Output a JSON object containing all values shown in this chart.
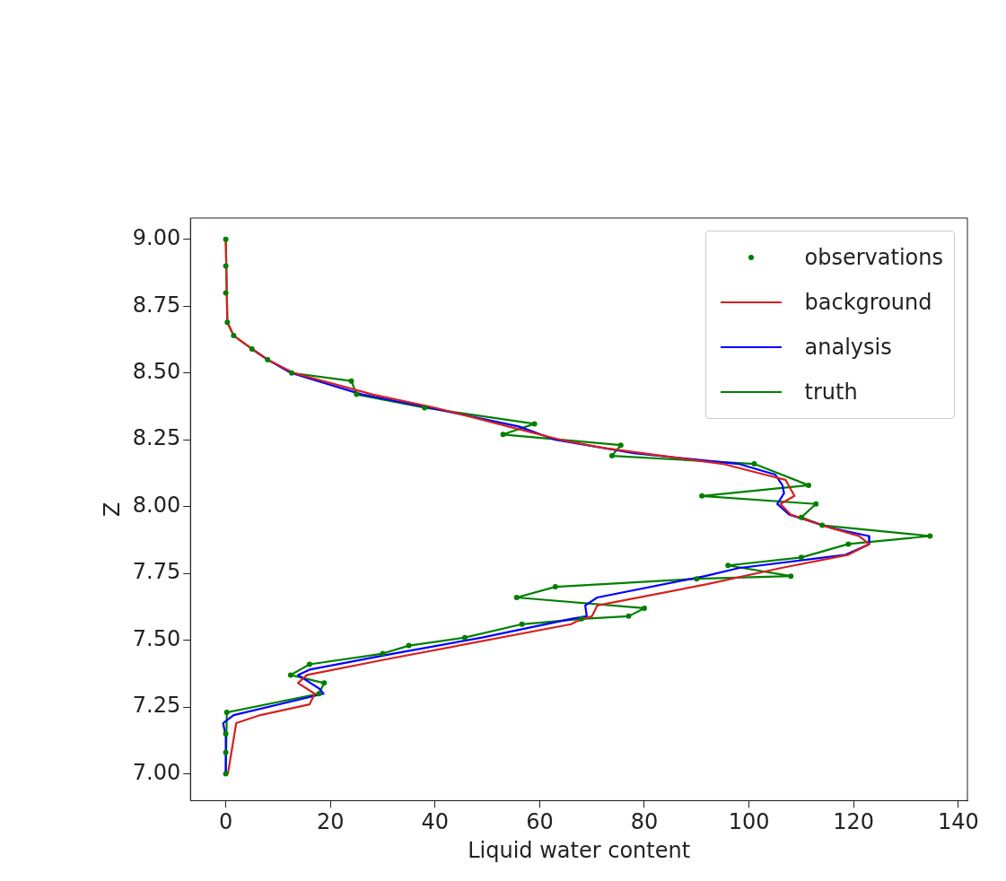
{
  "chart_data": {
    "type": "line",
    "xlabel": "Liquid water content",
    "ylabel": "Z",
    "xlim": [
      -6.75,
      141.75
    ],
    "xticks": [
      0,
      20,
      40,
      60,
      80,
      100,
      120,
      140
    ],
    "ylim": [
      6.9,
      9.08
    ],
    "yticks": [
      {
        "value": 7.0,
        "label": "7.00"
      },
      {
        "value": 7.25,
        "label": "7.25"
      },
      {
        "value": 7.5,
        "label": "7.50"
      },
      {
        "value": 7.75,
        "label": "7.75"
      },
      {
        "value": 8.0,
        "label": "8.00"
      },
      {
        "value": 8.25,
        "label": "8.25"
      },
      {
        "value": 8.5,
        "label": "8.50"
      },
      {
        "value": 8.75,
        "label": "8.75"
      },
      {
        "value": 9.0,
        "label": "9.00"
      }
    ],
    "grid": false,
    "legend": "top right",
    "series": [
      {
        "name": "observations",
        "type": "scatter",
        "marker": "circle",
        "color": "#008000",
        "x": [
          0,
          0,
          0,
          0.3,
          1.5,
          5,
          8,
          12.6,
          24,
          25,
          38,
          59,
          53,
          75.5,
          73.8,
          101,
          111.4,
          91,
          112.8,
          110,
          114,
          134.6,
          119,
          110,
          96,
          108,
          90,
          63,
          55.6,
          80,
          77,
          68,
          56.6,
          45.7,
          35,
          30,
          16,
          12.4,
          18.8,
          17.8,
          0.2,
          0,
          0,
          0
        ],
        "values": [
          9.0,
          8.9,
          8.8,
          8.69,
          8.64,
          8.59,
          8.55,
          8.5,
          8.47,
          8.42,
          8.37,
          8.31,
          8.27,
          8.23,
          8.19,
          8.16,
          8.08,
          8.04,
          8.01,
          7.96,
          7.93,
          7.89,
          7.86,
          7.81,
          7.78,
          7.74,
          7.73,
          7.7,
          7.66,
          7.62,
          7.59,
          7.58,
          7.56,
          7.51,
          7.48,
          7.45,
          7.41,
          7.37,
          7.34,
          7.3,
          7.23,
          7.15,
          7.08,
          7.0
        ]
      },
      {
        "name": "background",
        "marker": "none",
        "color": "#d62020",
        "x": [
          0,
          0.3,
          1.5,
          5,
          8,
          13,
          28,
          40,
          54,
          64,
          72,
          95,
          103,
          107,
          108.7,
          106,
          108,
          114,
          121,
          123,
          119,
          106,
          92,
          71,
          70,
          67,
          66,
          31,
          15.5,
          13.8,
          17,
          16,
          6.6,
          2,
          0.4
        ],
        "values": [
          9.0,
          8.69,
          8.64,
          8.59,
          8.55,
          8.5,
          8.42,
          8.37,
          8.3,
          8.25,
          8.22,
          8.16,
          8.12,
          8.1,
          8.04,
          8.01,
          7.97,
          7.93,
          7.89,
          7.86,
          7.82,
          7.77,
          7.71,
          7.63,
          7.59,
          7.57,
          7.56,
          7.43,
          7.37,
          7.34,
          7.3,
          7.26,
          7.22,
          7.19,
          7.0
        ]
      },
      {
        "name": "analysis",
        "marker": "none",
        "color": "#0000ff",
        "x": [
          5,
          8,
          12.5,
          26,
          39,
          56,
          63,
          78,
          98,
          105,
          106.4,
          106.7,
          105.4,
          107.7,
          115.8,
          122.9,
          123,
          118.5,
          98,
          91.6,
          71,
          68.7,
          69,
          66,
          49,
          32,
          16,
          13.8,
          17.8,
          18.7,
          1.5,
          -0.5,
          0,
          0
        ],
        "values": [
          8.59,
          8.55,
          8.5,
          8.42,
          8.37,
          8.3,
          8.25,
          8.2,
          8.16,
          8.12,
          8.08,
          8.05,
          8.01,
          7.97,
          7.92,
          7.89,
          7.86,
          7.82,
          7.77,
          7.74,
          7.66,
          7.63,
          7.59,
          7.58,
          7.51,
          7.45,
          7.39,
          7.37,
          7.32,
          7.3,
          7.22,
          7.19,
          7.14,
          7.0
        ]
      },
      {
        "name": "truth",
        "marker": "none",
        "color": "#008000",
        "x": [
          0,
          0.3,
          1.5,
          5,
          8,
          12.6,
          24,
          25,
          38,
          59,
          53,
          75.5,
          73.8,
          101,
          111.4,
          91,
          112.8,
          110,
          114,
          134.6,
          119,
          110,
          96,
          108,
          90,
          63,
          55.6,
          80,
          77,
          68,
          56.6,
          45.7,
          35,
          30,
          16,
          12.4,
          18.8,
          17.8,
          0.2,
          0
        ],
        "values": [
          9.0,
          8.69,
          8.64,
          8.59,
          8.55,
          8.5,
          8.47,
          8.42,
          8.37,
          8.31,
          8.27,
          8.23,
          8.19,
          8.16,
          8.08,
          8.04,
          8.01,
          7.96,
          7.93,
          7.89,
          7.86,
          7.81,
          7.78,
          7.74,
          7.73,
          7.7,
          7.66,
          7.62,
          7.59,
          7.58,
          7.56,
          7.51,
          7.48,
          7.45,
          7.41,
          7.37,
          7.34,
          7.3,
          7.23,
          7.0
        ]
      }
    ]
  }
}
